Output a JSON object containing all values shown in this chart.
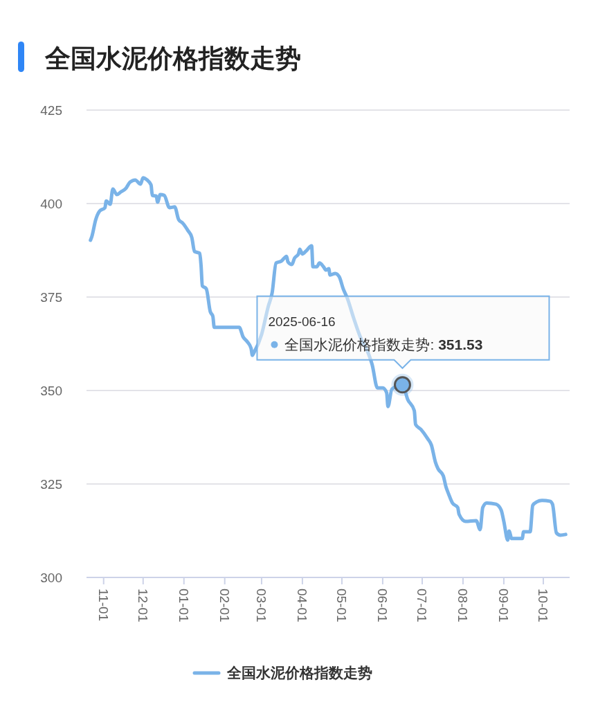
{
  "chart_data": {
    "type": "line",
    "title": "全国水泥价格指数走势",
    "x": [
      "2024-10-22",
      "2024-10-23",
      "2024-10-26",
      "2024-10-29",
      "2024-11-02",
      "2024-11-03",
      "2024-11-06",
      "2024-11-08",
      "2024-11-11",
      "2024-11-14",
      "2024-11-18",
      "2024-11-21",
      "2024-11-25",
      "2024-11-29",
      "2024-12-01",
      "2024-12-04",
      "2024-12-07",
      "2024-12-08",
      "2024-12-11",
      "2024-12-12",
      "2024-12-14",
      "2024-12-17",
      "2024-12-21",
      "2024-12-25",
      "2024-12-28",
      "2024-12-31",
      "2025-01-04",
      "2025-01-07",
      "2025-01-09",
      "2025-01-13",
      "2025-01-14",
      "2025-01-15",
      "2025-01-18",
      "2025-01-21",
      "2025-01-23",
      "2025-01-24",
      "2025-01-28",
      "2025-02-12",
      "2025-02-15",
      "2025-02-18",
      "2025-02-21",
      "2025-02-22",
      "2025-02-23",
      "2025-03-01",
      "2025-03-06",
      "2025-03-09",
      "2025-03-12",
      "2025-03-16",
      "2025-03-20",
      "2025-03-21",
      "2025-03-24",
      "2025-03-26",
      "2025-03-29",
      "2025-03-30",
      "2025-04-01",
      "2025-04-04",
      "2025-04-08",
      "2025-04-09",
      "2025-04-12",
      "2025-04-14",
      "2025-04-17",
      "2025-04-19",
      "2025-04-21",
      "2025-04-22",
      "2025-04-26",
      "2025-04-29",
      "2025-05-02",
      "2025-05-05",
      "2025-05-10",
      "2025-05-15",
      "2025-05-21",
      "2025-05-24",
      "2025-05-28",
      "2025-06-01",
      "2025-06-04",
      "2025-06-05",
      "2025-06-08",
      "2025-06-16",
      "2025-06-20",
      "2025-06-25",
      "2025-06-26",
      "2025-06-30",
      "2025-07-05",
      "2025-07-08",
      "2025-07-11",
      "2025-07-13",
      "2025-07-17",
      "2025-07-19",
      "2025-07-21",
      "2025-07-24",
      "2025-07-28",
      "2025-07-29",
      "2025-08-03",
      "2025-08-11",
      "2025-08-14",
      "2025-08-16",
      "2025-08-19",
      "2025-08-26",
      "2025-08-30",
      "2025-09-01",
      "2025-09-04",
      "2025-09-05",
      "2025-09-07",
      "2025-09-12",
      "2025-09-15",
      "2025-09-16",
      "2025-09-21",
      "2025-09-23",
      "2025-09-26",
      "2025-09-30",
      "2025-10-06",
      "2025-10-08",
      "2025-10-11",
      "2025-10-14",
      "2025-10-18"
    ],
    "series": [
      {
        "name": "全国水泥价格指数走势",
        "color": "#7ab3e8",
        "values": [
          390.2,
          391.1,
          395.7,
          398.0,
          398.9,
          400.7,
          399.8,
          403.9,
          402.4,
          403.1,
          404.1,
          405.7,
          406.3,
          405.2,
          406.9,
          406.3,
          405.0,
          402.2,
          402.0,
          400.4,
          402.4,
          402.2,
          398.9,
          399.1,
          395.7,
          394.8,
          392.8,
          390.9,
          387.2,
          386.7,
          383.5,
          378.0,
          377.2,
          371.1,
          369.8,
          366.9,
          366.9,
          366.9,
          364.3,
          363.1,
          361.3,
          359.4,
          360.0,
          365.0,
          372.4,
          376.1,
          384.1,
          384.6,
          385.9,
          384.4,
          383.7,
          385.4,
          386.5,
          387.8,
          386.5,
          387.4,
          388.7,
          383.1,
          383.1,
          384.1,
          383.1,
          382.2,
          382.6,
          380.9,
          381.3,
          380.4,
          377.2,
          374.8,
          369.3,
          364.3,
          360.0,
          356.9,
          350.7,
          350.7,
          349.4,
          345.7,
          350.4,
          351.53,
          347.6,
          344.6,
          340.9,
          339.6,
          337.2,
          335.4,
          330.9,
          329.1,
          327.2,
          324.3,
          322.4,
          319.9,
          318.7,
          316.9,
          315.0,
          315.2,
          312.8,
          318.7,
          319.9,
          319.6,
          318.0,
          315.0,
          310.0,
          312.4,
          310.4,
          310.4,
          310.4,
          312.2,
          312.2,
          319.3,
          320.2,
          320.6,
          320.4,
          319.6,
          311.9,
          311.3,
          311.5
        ]
      }
    ],
    "xlim": [
      "2024-10-19",
      "2025-10-21"
    ],
    "xticks": [
      {
        "value": "2024-11-01",
        "label": "11-01"
      },
      {
        "value": "2024-12-01",
        "label": "12-01"
      },
      {
        "value": "2025-01-01",
        "label": "01-01"
      },
      {
        "value": "2025-02-01",
        "label": "02-01"
      },
      {
        "value": "2025-03-01",
        "label": "03-01"
      },
      {
        "value": "2025-04-01",
        "label": "04-01"
      },
      {
        "value": "2025-05-01",
        "label": "05-01"
      },
      {
        "value": "2025-06-01",
        "label": "06-01"
      },
      {
        "value": "2025-07-01",
        "label": "07-01"
      },
      {
        "value": "2025-08-01",
        "label": "08-01"
      },
      {
        "value": "2025-09-01",
        "label": "09-01"
      },
      {
        "value": "2025-10-01",
        "label": "10-01"
      }
    ],
    "ylim": [
      300,
      425
    ],
    "yticks": [
      300,
      325,
      350,
      375,
      400,
      425
    ],
    "grid": "y",
    "legend": "bottom",
    "marker": "none",
    "line_style": "solid",
    "annotations": [
      "2025-06-16",
      {
        "text": "全国水泥价格指数走势: 351.53",
        "x": "2025-06-16",
        "y": 351.53
      }
    ]
  }
}
